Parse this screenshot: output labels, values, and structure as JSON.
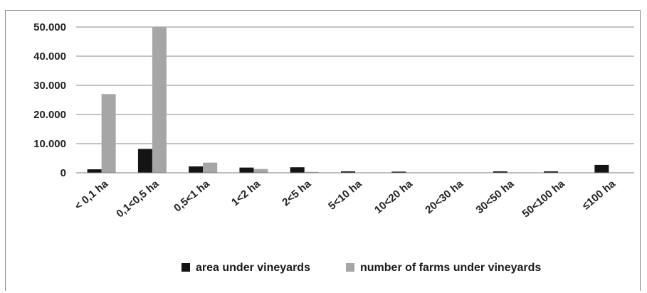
{
  "chart_data": {
    "type": "bar",
    "title": "",
    "xlabel": "",
    "ylabel": "",
    "categories": [
      "< 0,1 ha",
      "0,1<0,5 ha",
      "0,5<1 ha",
      "1<2 ha",
      "2<5 ha",
      "5<10 ha",
      "10<20 ha",
      "20<30 ha",
      "30<50 ha",
      "50<100 ha",
      "≤100 ha"
    ],
    "series": [
      {
        "name": "area under vineyards",
        "color": "#141414",
        "values": [
          1200,
          8200,
          2200,
          1800,
          1900,
          500,
          400,
          0,
          500,
          500,
          2700
        ]
      },
      {
        "name": "number of farms under vineyards",
        "color": "#a6a6a6",
        "values": [
          27000,
          50000,
          3500,
          1300,
          300,
          100,
          50,
          0,
          50,
          20,
          10
        ]
      }
    ],
    "yticks": [
      "0",
      "10.000",
      "20.000",
      "30.000",
      "40.000",
      "50.000"
    ],
    "ylim": [
      0,
      50000
    ],
    "grid": true,
    "legend": "bottom"
  }
}
